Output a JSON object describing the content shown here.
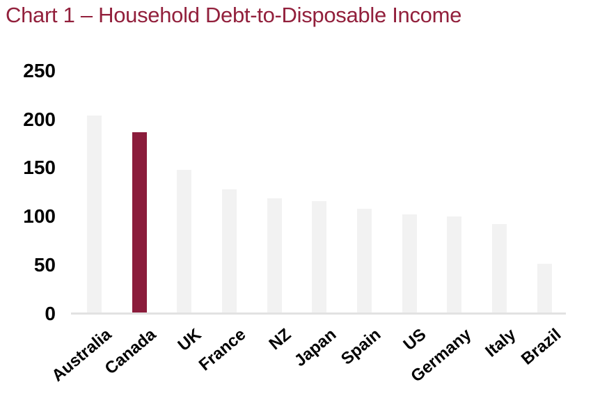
{
  "title": "Chart 1 – Household Debt-to-Disposable Income",
  "colors": {
    "title_text": "#92203C",
    "axis_text": "#000000",
    "default_bar": "#F2F2F2",
    "highlight_bar": "#8B1C3B",
    "baseline": "#E2E2E2",
    "background": "#FFFFFF"
  },
  "chart_data": {
    "type": "bar",
    "title": "Chart 1 – Household Debt-to-Disposable Income",
    "categories": [
      "Australia",
      "Canada",
      "UK",
      "France",
      "NZ",
      "Japan",
      "Spain",
      "US",
      "Germany",
      "Italy",
      "Brazil"
    ],
    "values": [
      203,
      186,
      147,
      127,
      118,
      115,
      107,
      101,
      99,
      91,
      50
    ],
    "highlighted_category": "Canada",
    "highlight_color": "#8B1C3B",
    "default_color": "#F2F2F2",
    "xlabel": "",
    "ylabel": "",
    "ylim": [
      0,
      250
    ],
    "y_ticks": [
      0,
      50,
      100,
      150,
      200,
      250
    ],
    "grid": false,
    "legend": "none",
    "x_tick_label_rotation_deg": 40
  }
}
